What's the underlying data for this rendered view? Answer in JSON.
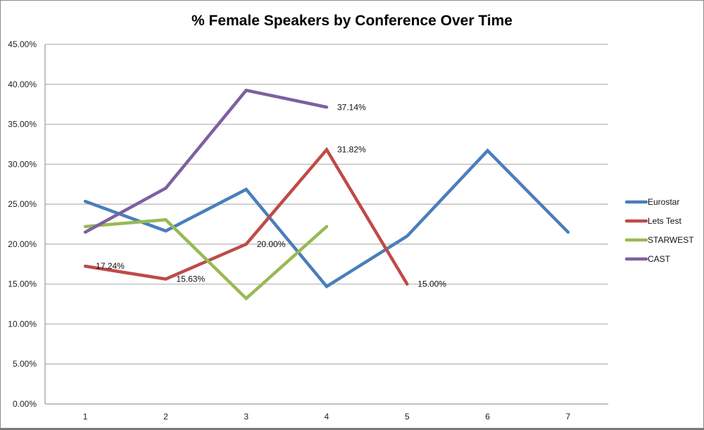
{
  "chart_data": {
    "type": "line",
    "title": "% Female Speakers by Conference Over Time",
    "xlabel": "",
    "ylabel": "",
    "categories": [
      "1",
      "2",
      "3",
      "4",
      "5",
      "6",
      "7"
    ],
    "ylim": [
      0,
      0.45
    ],
    "yticks": [
      "0.00%",
      "5.00%",
      "10.00%",
      "15.00%",
      "20.00%",
      "25.00%",
      "30.00%",
      "35.00%",
      "40.00%",
      "45.00%"
    ],
    "grid": true,
    "legend_position": "right",
    "series": [
      {
        "name": "Eurostar",
        "color": "#4a7ebb",
        "values": [
          0.2535,
          0.2165,
          0.2685,
          0.147,
          0.21,
          0.317,
          0.215
        ],
        "labels": []
      },
      {
        "name": "Lets Test",
        "color": "#be4b48",
        "values": [
          0.1724,
          0.1563,
          0.2,
          0.3182,
          0.15
        ],
        "labels": [
          "17.24%",
          "15.63%",
          "20.00%",
          "31.82%",
          "15.00%"
        ]
      },
      {
        "name": "STARWEST",
        "color": "#98b954",
        "values": [
          0.222,
          0.2305,
          0.132,
          0.222
        ],
        "labels": []
      },
      {
        "name": "CAST",
        "color": "#7d60a0",
        "values": [
          0.215,
          0.27,
          0.3925,
          0.3714
        ],
        "labels": [
          "",
          "",
          "",
          "37.14%"
        ]
      }
    ]
  }
}
